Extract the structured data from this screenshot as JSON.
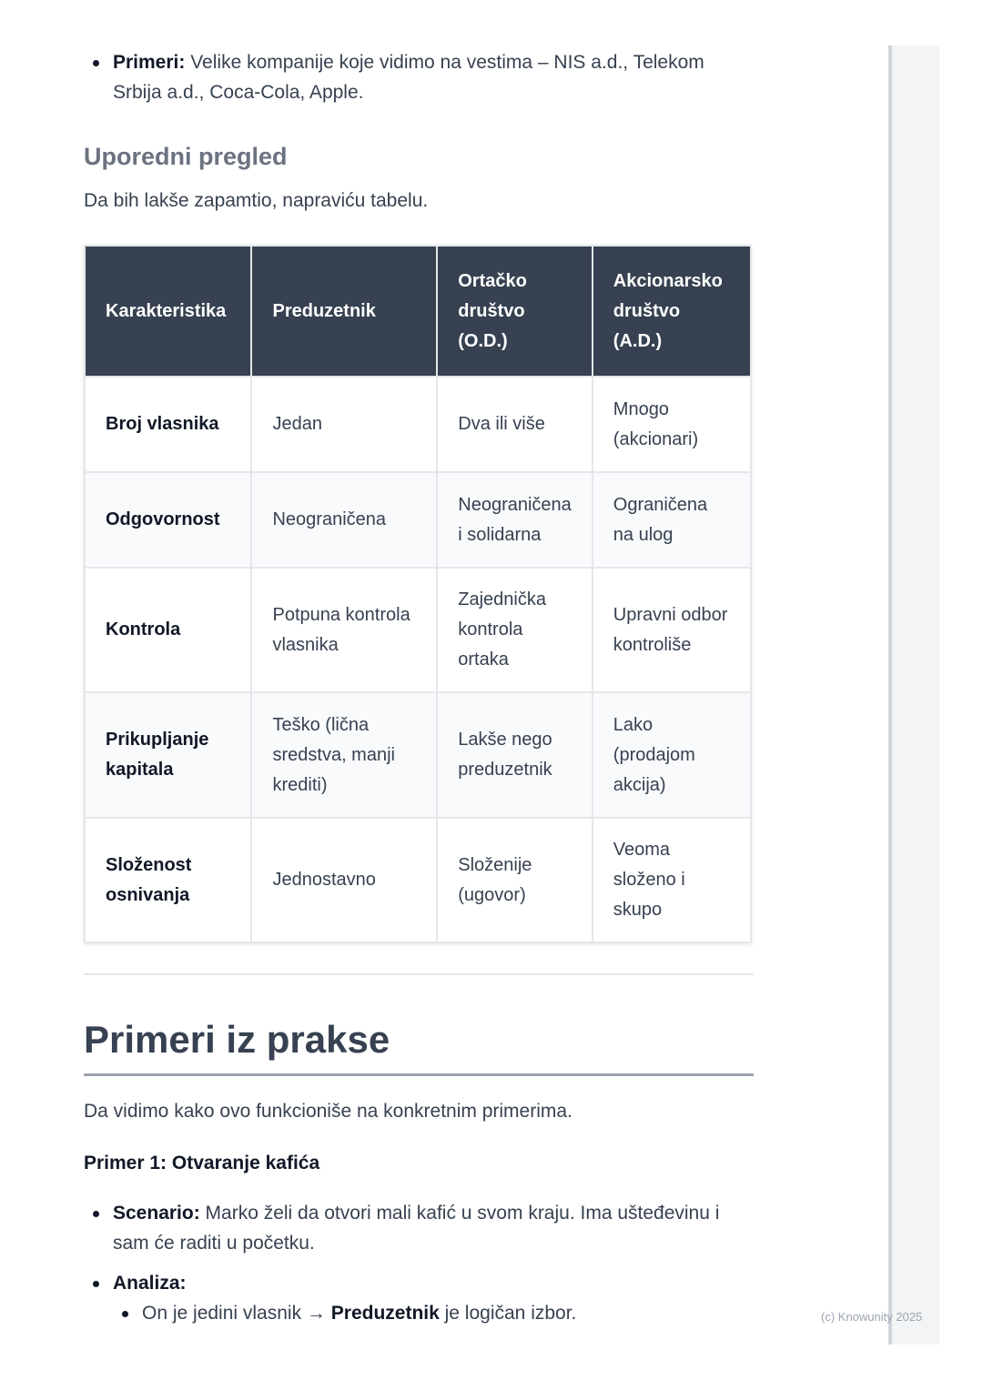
{
  "intro_bullet": {
    "label": "Primeri:",
    "text": " Velike kompanije koje vidimo na vestima – NIS a.d., Telekom Srbija a.d., Coca-Cola, Apple."
  },
  "section_title": "Uporedni pregled",
  "section_text": "Da bih lakše zapamtio, napraviću tabelu.",
  "table": {
    "headers": [
      "Karakteristika",
      "Preduzetnik",
      "Ortačko društvo (O.D.)",
      "Akcionarsko društvo (A.D.)"
    ],
    "rows": [
      [
        "Broj vlasnika",
        "Jedan",
        "Dva ili više",
        "Mnogo (akcionari)"
      ],
      [
        "Odgovornost",
        "Neograničena",
        "Neograničena i solidarna",
        "Ograničena na ulog"
      ],
      [
        "Kontrola",
        "Potpuna kontrola vlasnika",
        "Zajednička kontrola ortaka",
        "Upravni odbor kontroliše"
      ],
      [
        "Prikupljanje kapitala",
        "Teško (lična sredstva, manji krediti)",
        "Lakše nego preduzetnik",
        "Lako (prodajom akcija)"
      ],
      [
        "Složenost osnivanja",
        "Jednostavno",
        "Složenije (ugovor)",
        "Veoma složeno i skupo"
      ]
    ]
  },
  "heading": "Primeri iz prakse",
  "heading_text": "Da vidimo kako ovo funkcioniše na konkretnim primerima.",
  "example_title": "Primer 1: Otvaranje kafića",
  "scenario": {
    "label": "Scenario:",
    "text": " Marko želi da otvori mali kafić u svom kraju. Ima ušteđevinu i sam će raditi u početku."
  },
  "analysis": {
    "label": "Analiza:",
    "sub_pre": "On je jedini vlasnik → ",
    "sub_bold": "Preduzetnik",
    "sub_post": " je logičan izbor."
  },
  "footer": "(c) Knowunity 2025"
}
